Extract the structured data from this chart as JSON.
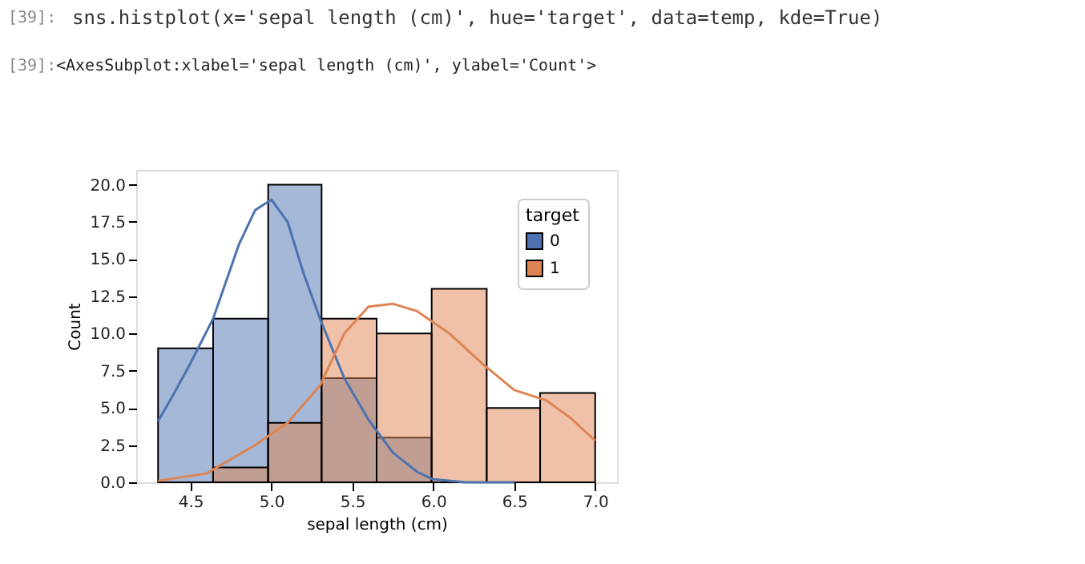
{
  "chart_data": {
    "type": "histogram",
    "annotations": [
      "[39]:",
      "sns.histplot(x='sepal length (cm)', hue='target', data=temp, kde=True)",
      "[39]:",
      "<AxesSubplot:xlabel='sepal length (cm)', ylabel='Count'>"
    ],
    "xlabel": "sepal length (cm)",
    "ylabel": "Count",
    "legend_title": "target",
    "legend": "top right",
    "grid": false,
    "bins": [
      4.3,
      4.64,
      4.98,
      5.31,
      5.65,
      5.99,
      6.33,
      6.66,
      7.0
    ],
    "series": [
      {
        "name": "0",
        "type": "histogram",
        "color": "#4c72b0",
        "values": [
          9,
          11,
          20,
          7,
          3,
          0,
          0,
          0
        ]
      },
      {
        "name": "1",
        "type": "histogram",
        "color": "#dd8452",
        "values": [
          0,
          1,
          4,
          11,
          10,
          13,
          5,
          6
        ]
      },
      {
        "type": "line",
        "color": "#4c72b0",
        "x": [
          4.3,
          4.4,
          4.5,
          4.64,
          4.8,
          4.9,
          5.0,
          5.1,
          5.2,
          5.3,
          5.45,
          5.6,
          5.75,
          5.9,
          6.0,
          6.2,
          6.5
        ],
        "values": [
          4.1,
          6,
          8,
          11,
          16,
          18.3,
          19,
          17.5,
          14,
          11,
          7,
          4.2,
          2,
          0.7,
          0.2,
          0,
          0
        ]
      },
      {
        "type": "line",
        "color": "#dd8452",
        "x": [
          4.3,
          4.6,
          4.9,
          5.1,
          5.3,
          5.45,
          5.6,
          5.75,
          5.9,
          6.1,
          6.3,
          6.5,
          6.7,
          6.85,
          7.0
        ],
        "values": [
          0.1,
          0.6,
          2.5,
          4,
          6.5,
          10,
          11.8,
          12,
          11.5,
          10,
          8,
          6.2,
          5.5,
          4.3,
          2.8
        ]
      }
    ],
    "xlim": [
      4.165,
      7.135
    ],
    "xticks": [
      4.5,
      {
        "value": 5,
        "label": "5.0"
      },
      5.5,
      {
        "value": 6,
        "label": "6.0"
      },
      6.5,
      {
        "value": 7,
        "label": "7.0"
      }
    ],
    "ylim": [
      0,
      21
    ],
    "yticks": [
      {
        "value": 0,
        "label": "0.0"
      },
      2.5,
      {
        "value": 5,
        "label": "5.0"
      },
      7.5,
      {
        "value": 10,
        "label": "10.0"
      },
      12.5,
      {
        "value": 15,
        "label": "15.0"
      },
      17.5,
      {
        "value": 20,
        "label": "20.0"
      }
    ]
  }
}
